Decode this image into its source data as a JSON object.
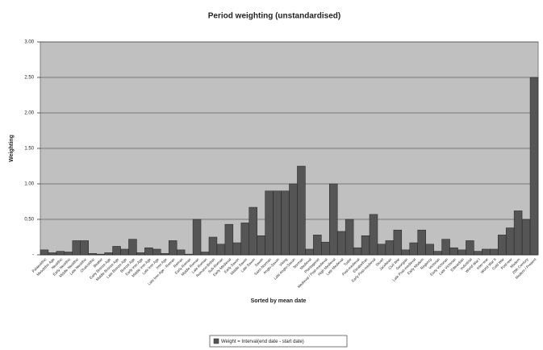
{
  "chart_data": {
    "type": "bar",
    "title": "Period weighting (unstandardised)",
    "x_label": "Sorted by mean date",
    "y_label": "Weighting",
    "legend": "bottom",
    "grid": true,
    "ylim": [
      0,
      3
    ],
    "yticks": [
      {
        "value": 0,
        "label": "-"
      },
      {
        "value": 0.5,
        "label": "0.50"
      },
      {
        "value": 1,
        "label": "1.00"
      },
      {
        "value": 1.5,
        "label": "1.50"
      },
      {
        "value": 2,
        "label": "2.00"
      },
      {
        "value": 2.5,
        "label": "2.50"
      },
      {
        "value": 3,
        "label": "3.00"
      }
    ],
    "categories": [
      "Palaeolithic",
      "Mesolithic Age",
      "Neolithic",
      "Early Neolithic",
      "Middle Neolithic",
      "Late Neolithic",
      "Chalcolithic",
      "Beaker",
      "Early Bronze Age",
      "Middle Bronze Age",
      "Late Bronze Age",
      "Bronze Age",
      "Early Iron Age",
      "Middle Iron Age",
      "Late Iron Age",
      "Iron Age",
      "Late Iron Age - Roman",
      "Roman",
      "Early Roman",
      "Middle Roman",
      "Late Roman",
      "Romano-British",
      "Sub-Roman",
      "Early Medieval",
      "Early Saxon",
      "Middle Saxon",
      "Late Saxon",
      "Saxon",
      "Saxo-Norman",
      "Anglo-Saxon",
      "Viking",
      "Late Anglo-Saxon",
      "Norman",
      "Medieval",
      "Plantagenet",
      "Medieval / Post-medieval",
      "High Medieval",
      "Late Medieval",
      "Tudor",
      "Post-medieval",
      "Elizabethan",
      "Early Post-medieval",
      "Stuart",
      "Jacobean",
      "Civil War",
      "Georgian",
      "Late Post-medieval",
      "Early Modern",
      "Regency",
      "Victorian",
      "Early Victorian",
      "Late Victorian",
      "Edwardian",
      "Industrial",
      "World War I",
      "Inter-war",
      "World War II",
      "Cold War",
      "Post-war",
      "Modern",
      "20th Century",
      "Modern / Present"
    ],
    "series": [
      {
        "name": "Weight = Interval(end date - start date)",
        "color": "#555555",
        "values": [
          0.07,
          0.03,
          0.05,
          0.04,
          0.2,
          0.2,
          0.02,
          0.01,
          0.03,
          0.12,
          0.08,
          0.22,
          0.03,
          0.1,
          0.08,
          0.02,
          0.2,
          0.07,
          0.01,
          0.5,
          0.04,
          0.25,
          0.15,
          0.43,
          0.17,
          0.45,
          0.67,
          0.27,
          0.9,
          0.9,
          0.9,
          1.0,
          1.25,
          0.08,
          0.28,
          0.18,
          1.0,
          0.33,
          0.5,
          0.1,
          0.27,
          0.57,
          0.15,
          0.2,
          0.35,
          0.07,
          0.17,
          0.35,
          0.15,
          0.05,
          0.22,
          0.1,
          0.07,
          0.2,
          0.05,
          0.08,
          0.08,
          0.28,
          0.38,
          0.62,
          0.5,
          2.5
        ]
      }
    ]
  }
}
